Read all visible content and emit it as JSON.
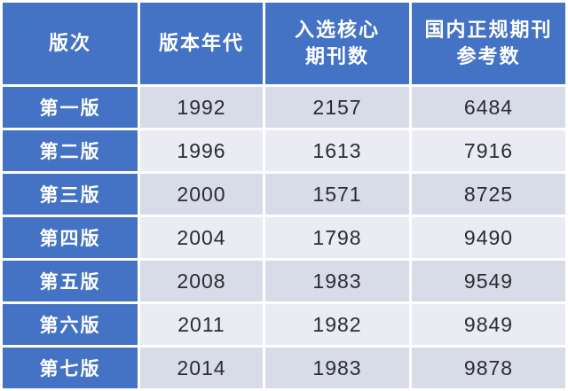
{
  "chart_data": {
    "type": "table",
    "title": "",
    "columns": [
      "版次",
      "版本年代",
      "入选核心期刊数",
      "国内正规期刊参考数"
    ],
    "rows": [
      [
        "第一版",
        "1992",
        "2157",
        "6484"
      ],
      [
        "第二版",
        "1996",
        "1613",
        "7916"
      ],
      [
        "第三版",
        "2000",
        "1571",
        "8725"
      ],
      [
        "第四版",
        "2004",
        "1798",
        "9490"
      ],
      [
        "第五版",
        "2008",
        "1983",
        "9549"
      ],
      [
        "第六版",
        "2011",
        "1982",
        "9849"
      ],
      [
        "第七版",
        "2014",
        "1983",
        "9878"
      ]
    ]
  },
  "display": {
    "headers": [
      "版次",
      "版本年代",
      "入选核心\n期刊数",
      "国内正规期刊\n参考数"
    ]
  },
  "colors": {
    "header_bg": "#4472c4",
    "edition_col_bg": "#4472c4",
    "row_odd_bg": "#d8dbe8",
    "row_even_bg": "#eaebf3",
    "header_text": "#ffffff",
    "data_text": "#2b2b33",
    "grid": "#ffffff"
  }
}
